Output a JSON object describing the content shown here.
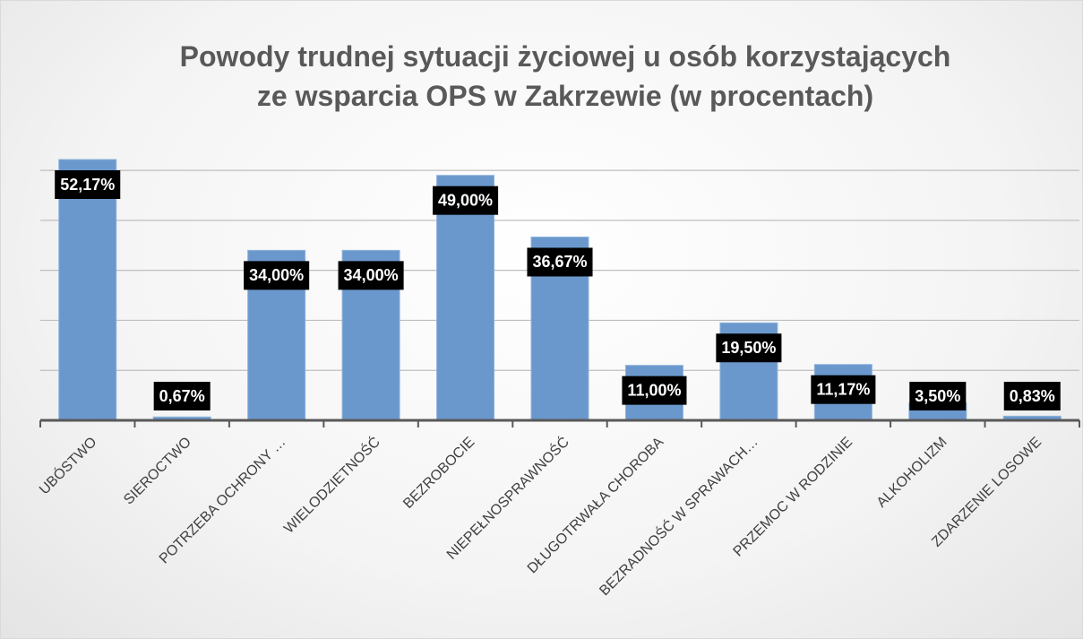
{
  "chart_data": {
    "type": "bar",
    "title": "Powody trudnej sytuacji życiowej u osób korzystających\nze wsparcia OPS w Zakrzewie (w procentach)",
    "categories": [
      "UBÓSTWO",
      "SIEROCTWO",
      "POTRZEBA OCHRONY …",
      "WIELODZIETNOŚĆ",
      "BEZROBOCIE",
      "NIEPEŁNOSPRAWNOŚĆ",
      "DŁUGOTRWAŁA CHOROBA",
      "BEZRADNOŚĆ W SPRAWACH…",
      "PRZEMOC W RODZINIE",
      "ALKOHOLIZM",
      "ZDARZENIE LOSOWE"
    ],
    "values": [
      52.17,
      0.67,
      34,
      34,
      49,
      36.67,
      11,
      19.5,
      11.17,
      3.5,
      0.83
    ],
    "value_labels": [
      "52,17%",
      "0,67%",
      "34,00%",
      "34,00%",
      "49,00%",
      "36,67%",
      "11,00%",
      "19,50%",
      "11,17%",
      "3,50%",
      "0,83%"
    ],
    "color": "#6a98cc",
    "ylim": [
      0,
      60
    ],
    "yticks": [
      0,
      10,
      20,
      30,
      40,
      50,
      60
    ],
    "grid": true
  }
}
